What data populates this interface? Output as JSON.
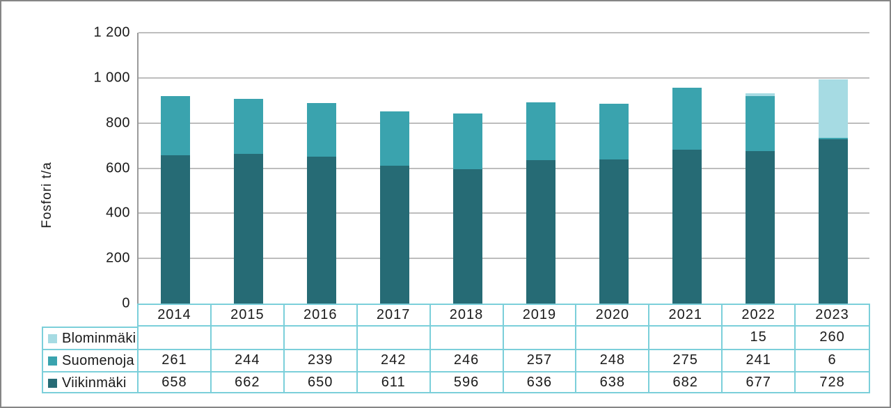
{
  "chart_data": {
    "type": "bar",
    "stacked": true,
    "title": "",
    "xlabel": "",
    "ylabel": "Fosfori t/a",
    "ylim": [
      0,
      1200
    ],
    "y_tick_labels": [
      "1 200",
      "1 000",
      "800",
      "600",
      "400",
      "200",
      "0"
    ],
    "grid": true,
    "legend_position": "table-row-headers-left",
    "categories": [
      "2014",
      "2015",
      "2016",
      "2017",
      "2018",
      "2019",
      "2020",
      "2021",
      "2022",
      "2023"
    ],
    "series": [
      {
        "name": "Blominmäki",
        "color": "#a6dbe3",
        "values": [
          null,
          null,
          null,
          null,
          null,
          null,
          null,
          null,
          15,
          260
        ]
      },
      {
        "name": "Suomenoja",
        "color": "#3aa3ae",
        "values": [
          261,
          244,
          239,
          242,
          246,
          257,
          248,
          275,
          241,
          6
        ]
      },
      {
        "name": "Viikinmäki",
        "color": "#266b75",
        "values": [
          658,
          662,
          650,
          611,
          596,
          636,
          638,
          682,
          677,
          728
        ]
      }
    ]
  },
  "colors": {
    "table_border": "#7bcfda",
    "gridline": "#bdbdbd",
    "axis_line": "#9a9a9a",
    "text": "#1a1a1a",
    "frame_border": "#858585",
    "background": "#ffffff"
  }
}
